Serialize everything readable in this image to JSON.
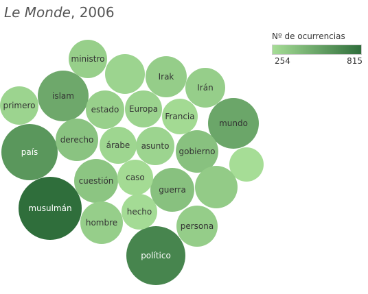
{
  "chart_data": {
    "type": "packed-bubble",
    "title_italic": "Le Monde",
    "title_rest": ", 2006",
    "legend": {
      "title": "Nº de ocurrencias",
      "min": 254,
      "max": 815,
      "min_label": "254",
      "max_label": "815",
      "color_low": "#a6dd96",
      "color_high": "#2f6e3b",
      "placement": "top-right"
    },
    "bubbles": [
      {
        "label": "musulmán",
        "value": 815
      },
      {
        "label": "político",
        "value": 700
      },
      {
        "label": "país",
        "value": 610
      },
      {
        "label": "mundo",
        "value": 530
      },
      {
        "label": "islam",
        "value": 520
      },
      {
        "label": "gobierno",
        "value": 395
      },
      {
        "label": "guerra",
        "value": 395
      },
      {
        "label": "derecho",
        "value": 385
      },
      {
        "label": "cuestión",
        "value": 375
      },
      {
        "label": "primero",
        "value": 300
      },
      {
        "label": "ministro",
        "value": 325
      },
      {
        "label": "",
        "value": 300
      },
      {
        "label": "Irak",
        "value": 335
      },
      {
        "label": "Irán",
        "value": 330
      },
      {
        "label": "estado",
        "value": 320
      },
      {
        "label": "Europa",
        "value": 305
      },
      {
        "label": "Francia",
        "value": 270
      },
      {
        "label": "árabe",
        "value": 290
      },
      {
        "label": "asunto",
        "value": 300
      },
      {
        "label": "",
        "value": 254
      },
      {
        "label": "caso",
        "value": 265
      },
      {
        "label": "",
        "value": 345
      },
      {
        "label": "hecho",
        "value": 262
      },
      {
        "label": "hombre",
        "value": 330
      },
      {
        "label": "persona",
        "value": 335
      }
    ]
  }
}
